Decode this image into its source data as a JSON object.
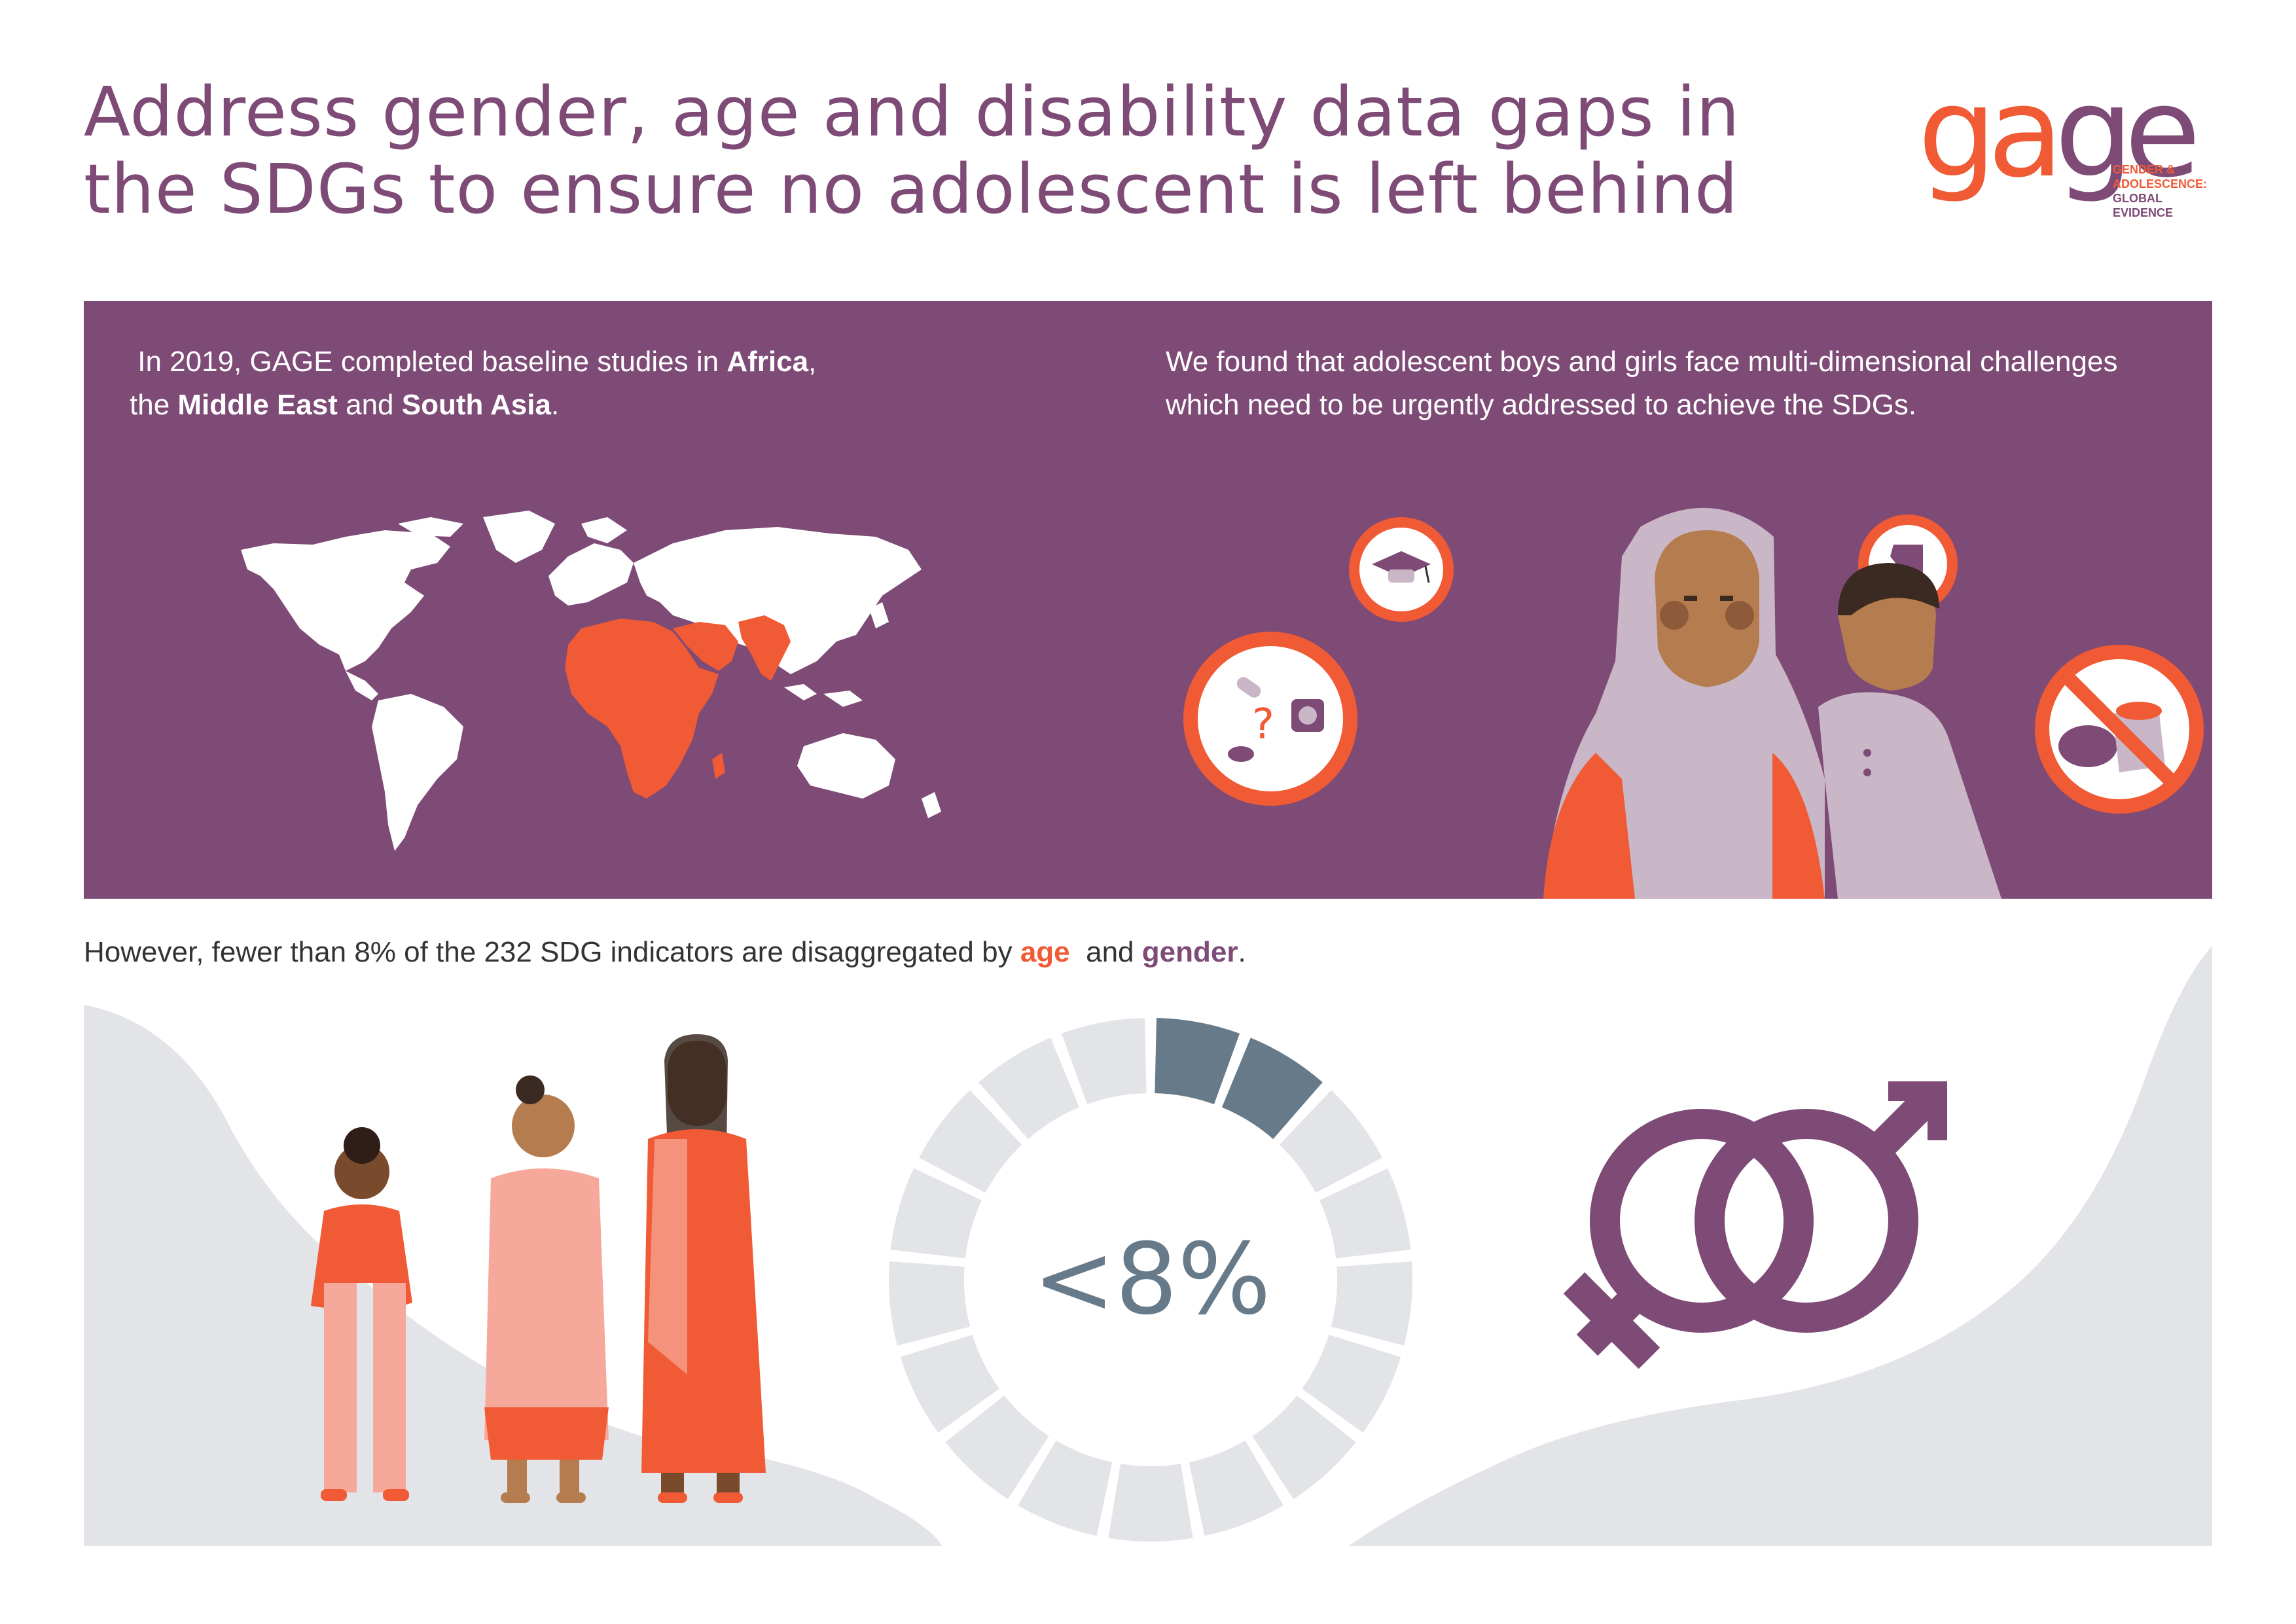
{
  "header": {
    "title": "Address gender, age and disability data gaps in the SDGs to ensure no adolescent is left behind"
  },
  "logo": {
    "word_part1": "ga",
    "word_part2": "ge",
    "tagline_line1": "GENDER &",
    "tagline_line2": "ADOLESCENCE:",
    "tagline_line3": "GLOBAL",
    "tagline_line4": "EVIDENCE"
  },
  "study_panel": {
    "text_1": "In 2019, GAGE completed baseline studies in ",
    "region_africa": "Africa",
    "text_2": ",",
    "text_3": "the ",
    "region_middle_east": "Middle East",
    "text_4": " and ",
    "region_south_asia": "South Asia",
    "text_5": ".",
    "findings": "We found that adolescent boys and girls face multi-dimensional challenges which need to be urgently addressed to achieve the SDGs.",
    "highlight_color": "#f05a35",
    "panel_color": "#7e4a76",
    "challenge_icons": [
      "graduation-cap-icon",
      "raised-fist-icon",
      "contraception-question-icon",
      "no-food-icon"
    ]
  },
  "indicators": {
    "text_1": "However, fewer than 8% of the 232 SDG indicators are disaggregated by ",
    "age_word": "age",
    "text_2": "  and ",
    "gender_word": "gender",
    "text_3": ".",
    "percent_label": "<8%",
    "highlighted_share": 0.08,
    "ring_segments": 17,
    "highlight_color": "#677a89",
    "ring_color": "#e2e4e7"
  }
}
